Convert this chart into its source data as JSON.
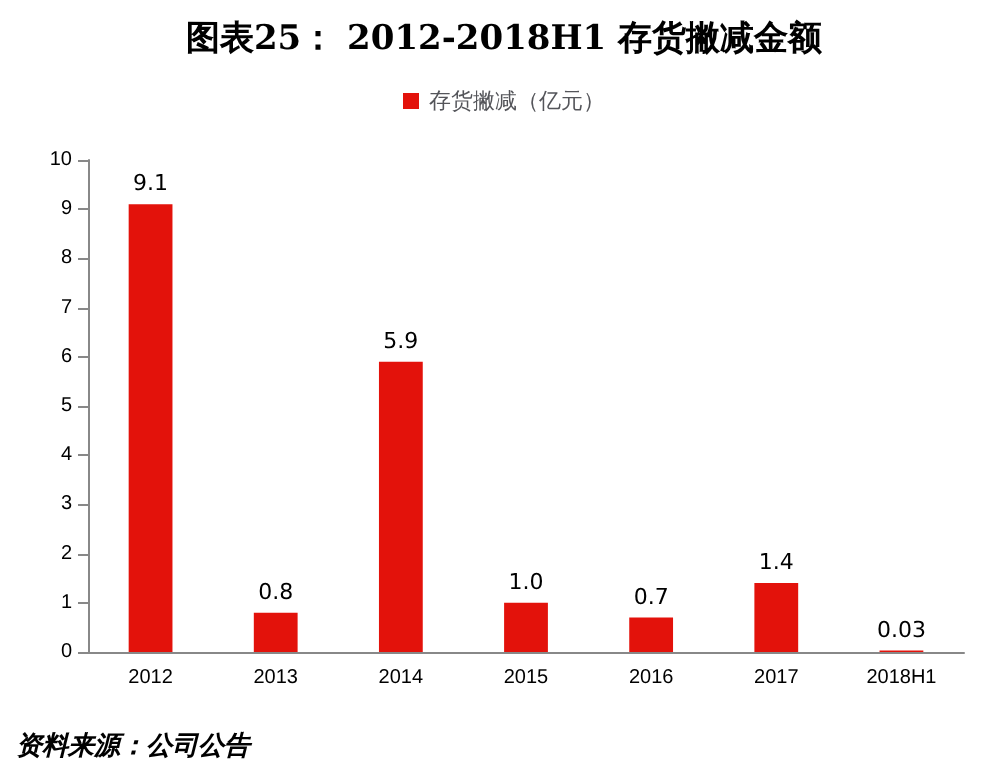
{
  "chart_data": {
    "type": "bar",
    "title": "图表25： 2012-2018H1 存货撇减金额",
    "categories": [
      "2012",
      "2013",
      "2014",
      "2015",
      "2016",
      "2017",
      "2018H1"
    ],
    "series": [
      {
        "name": "存货撇减（亿元）",
        "color": "#e3120b",
        "values": [
          9.1,
          0.8,
          5.9,
          1.0,
          0.7,
          1.4,
          0.03
        ],
        "value_labels": [
          "9.1",
          "0.8",
          "5.9",
          "1.0",
          "0.7",
          "1.4",
          "0.03"
        ]
      }
    ],
    "ylim": [
      0,
      10
    ],
    "yticks": [
      0,
      1,
      2,
      3,
      4,
      5,
      6,
      7,
      8,
      9,
      10
    ],
    "grid": false,
    "legend": "top",
    "annotations": [
      "资料来源：公司公告"
    ]
  }
}
